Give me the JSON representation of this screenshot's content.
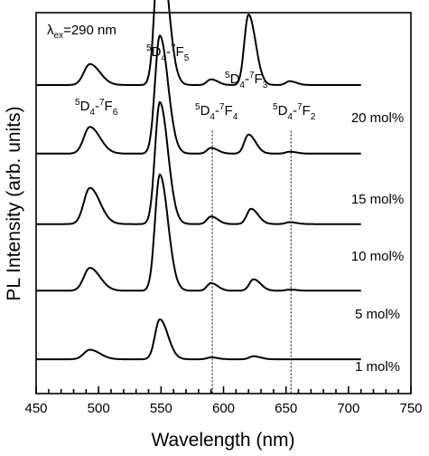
{
  "chart_data": {
    "type": "line",
    "xlabel": "Wavelength (nm)",
    "ylabel": "PL Intensity (arb. units)",
    "xlim": [
      450,
      750
    ],
    "x_ticks": [
      450,
      500,
      550,
      600,
      650,
      700,
      750
    ],
    "y_ticks": false,
    "grid": false,
    "excitation": {
      "lambda": "λ",
      "sub": "ex",
      "value": "=290 nm"
    },
    "transitions": [
      {
        "pre": "5",
        "mid": "D",
        "sub1": "4",
        "dash": "-",
        "sup": "7",
        "base": "F",
        "sub2": "6",
        "wavelength": 493
      },
      {
        "pre": "5",
        "mid": "D",
        "sub1": "4",
        "dash": "-",
        "sup": "7",
        "base": "F",
        "sub2": "5",
        "wavelength": 549
      },
      {
        "pre": "5",
        "mid": "D",
        "sub1": "4",
        "dash": "-",
        "sup": "7",
        "base": "F",
        "sub2": "4",
        "wavelength": 590
      },
      {
        "pre": "5",
        "mid": "D",
        "sub1": "4",
        "dash": "-",
        "sup": "7",
        "base": "F",
        "sub2": "3",
        "wavelength": 620
      },
      {
        "pre": "5",
        "mid": "D",
        "sub1": "4",
        "dash": "-",
        "sup": "7",
        "base": "F",
        "sub2": "2",
        "wavelength": 653
      }
    ],
    "reference_lines": [
      591,
      654
    ],
    "series": [
      {
        "name": "20 mol%",
        "baseline": 0.81,
        "peaks": [
          [
            493,
            0.055
          ],
          [
            549,
            0.39
          ],
          [
            590,
            0.015
          ],
          [
            620,
            0.185
          ],
          [
            653,
            0.01
          ]
        ]
      },
      {
        "name": "15 mol%",
        "baseline": 0.63,
        "peaks": [
          [
            493,
            0.07
          ],
          [
            549,
            0.31
          ],
          [
            590,
            0.015
          ],
          [
            620,
            0.05
          ],
          [
            653,
            0.005
          ]
        ]
      },
      {
        "name": "10 mol%",
        "baseline": 0.445,
        "peaks": [
          [
            493,
            0.095
          ],
          [
            549,
            0.32
          ],
          [
            590,
            0.02
          ],
          [
            622,
            0.04
          ],
          [
            653,
            0.005
          ]
        ]
      },
      {
        "name": "5 mol%",
        "baseline": 0.27,
        "peaks": [
          [
            493,
            0.06
          ],
          [
            549,
            0.305
          ],
          [
            590,
            0.02
          ],
          [
            624,
            0.03
          ],
          [
            653,
            0.003
          ]
        ]
      },
      {
        "name": "1 mol%",
        "baseline": 0.09,
        "peaks": [
          [
            493,
            0.025
          ],
          [
            549,
            0.105
          ],
          [
            590,
            0.005
          ],
          [
            624,
            0.008
          ]
        ]
      }
    ]
  }
}
